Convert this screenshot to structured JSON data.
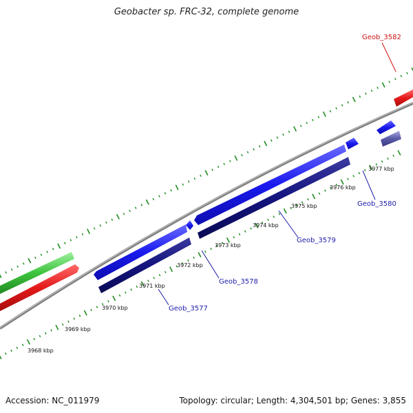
{
  "header": {
    "title": "Geobacter sp. FRC-32, complete genome"
  },
  "footer": {
    "accession": "Accession: NC_011979",
    "summary": "Topology: circular; Length: 4,304,501 bp; Genes: 3,855"
  },
  "colors": {
    "backbone": "#888888",
    "tick": "#1e8c1e",
    "forward_cds": "#1a1aee",
    "reverse_cds": "#14147e",
    "rna": "#e41a1a",
    "green_feature": "#3ec43e",
    "lavender_feature": "#5a5aa8",
    "label_blue": "#1a1aa8",
    "label_red": "#cc1111"
  },
  "scale_labels": [
    "3968 kbp",
    "3969 kbp",
    "3970 kbp",
    "3971 kbp",
    "3972 kbp",
    "3973 kbp",
    "3974 kbp",
    "3975 kbp",
    "3976 kbp",
    "3977 kbp"
  ],
  "gene_labels": [
    {
      "text": "Geob_3577",
      "color": "label_blue"
    },
    {
      "text": "Geob_3578",
      "color": "label_blue"
    },
    {
      "text": "Geob_3579",
      "color": "label_blue"
    },
    {
      "text": "Geob_3580",
      "color": "label_blue"
    },
    {
      "text": "Geob_3582",
      "color": "label_red"
    }
  ]
}
